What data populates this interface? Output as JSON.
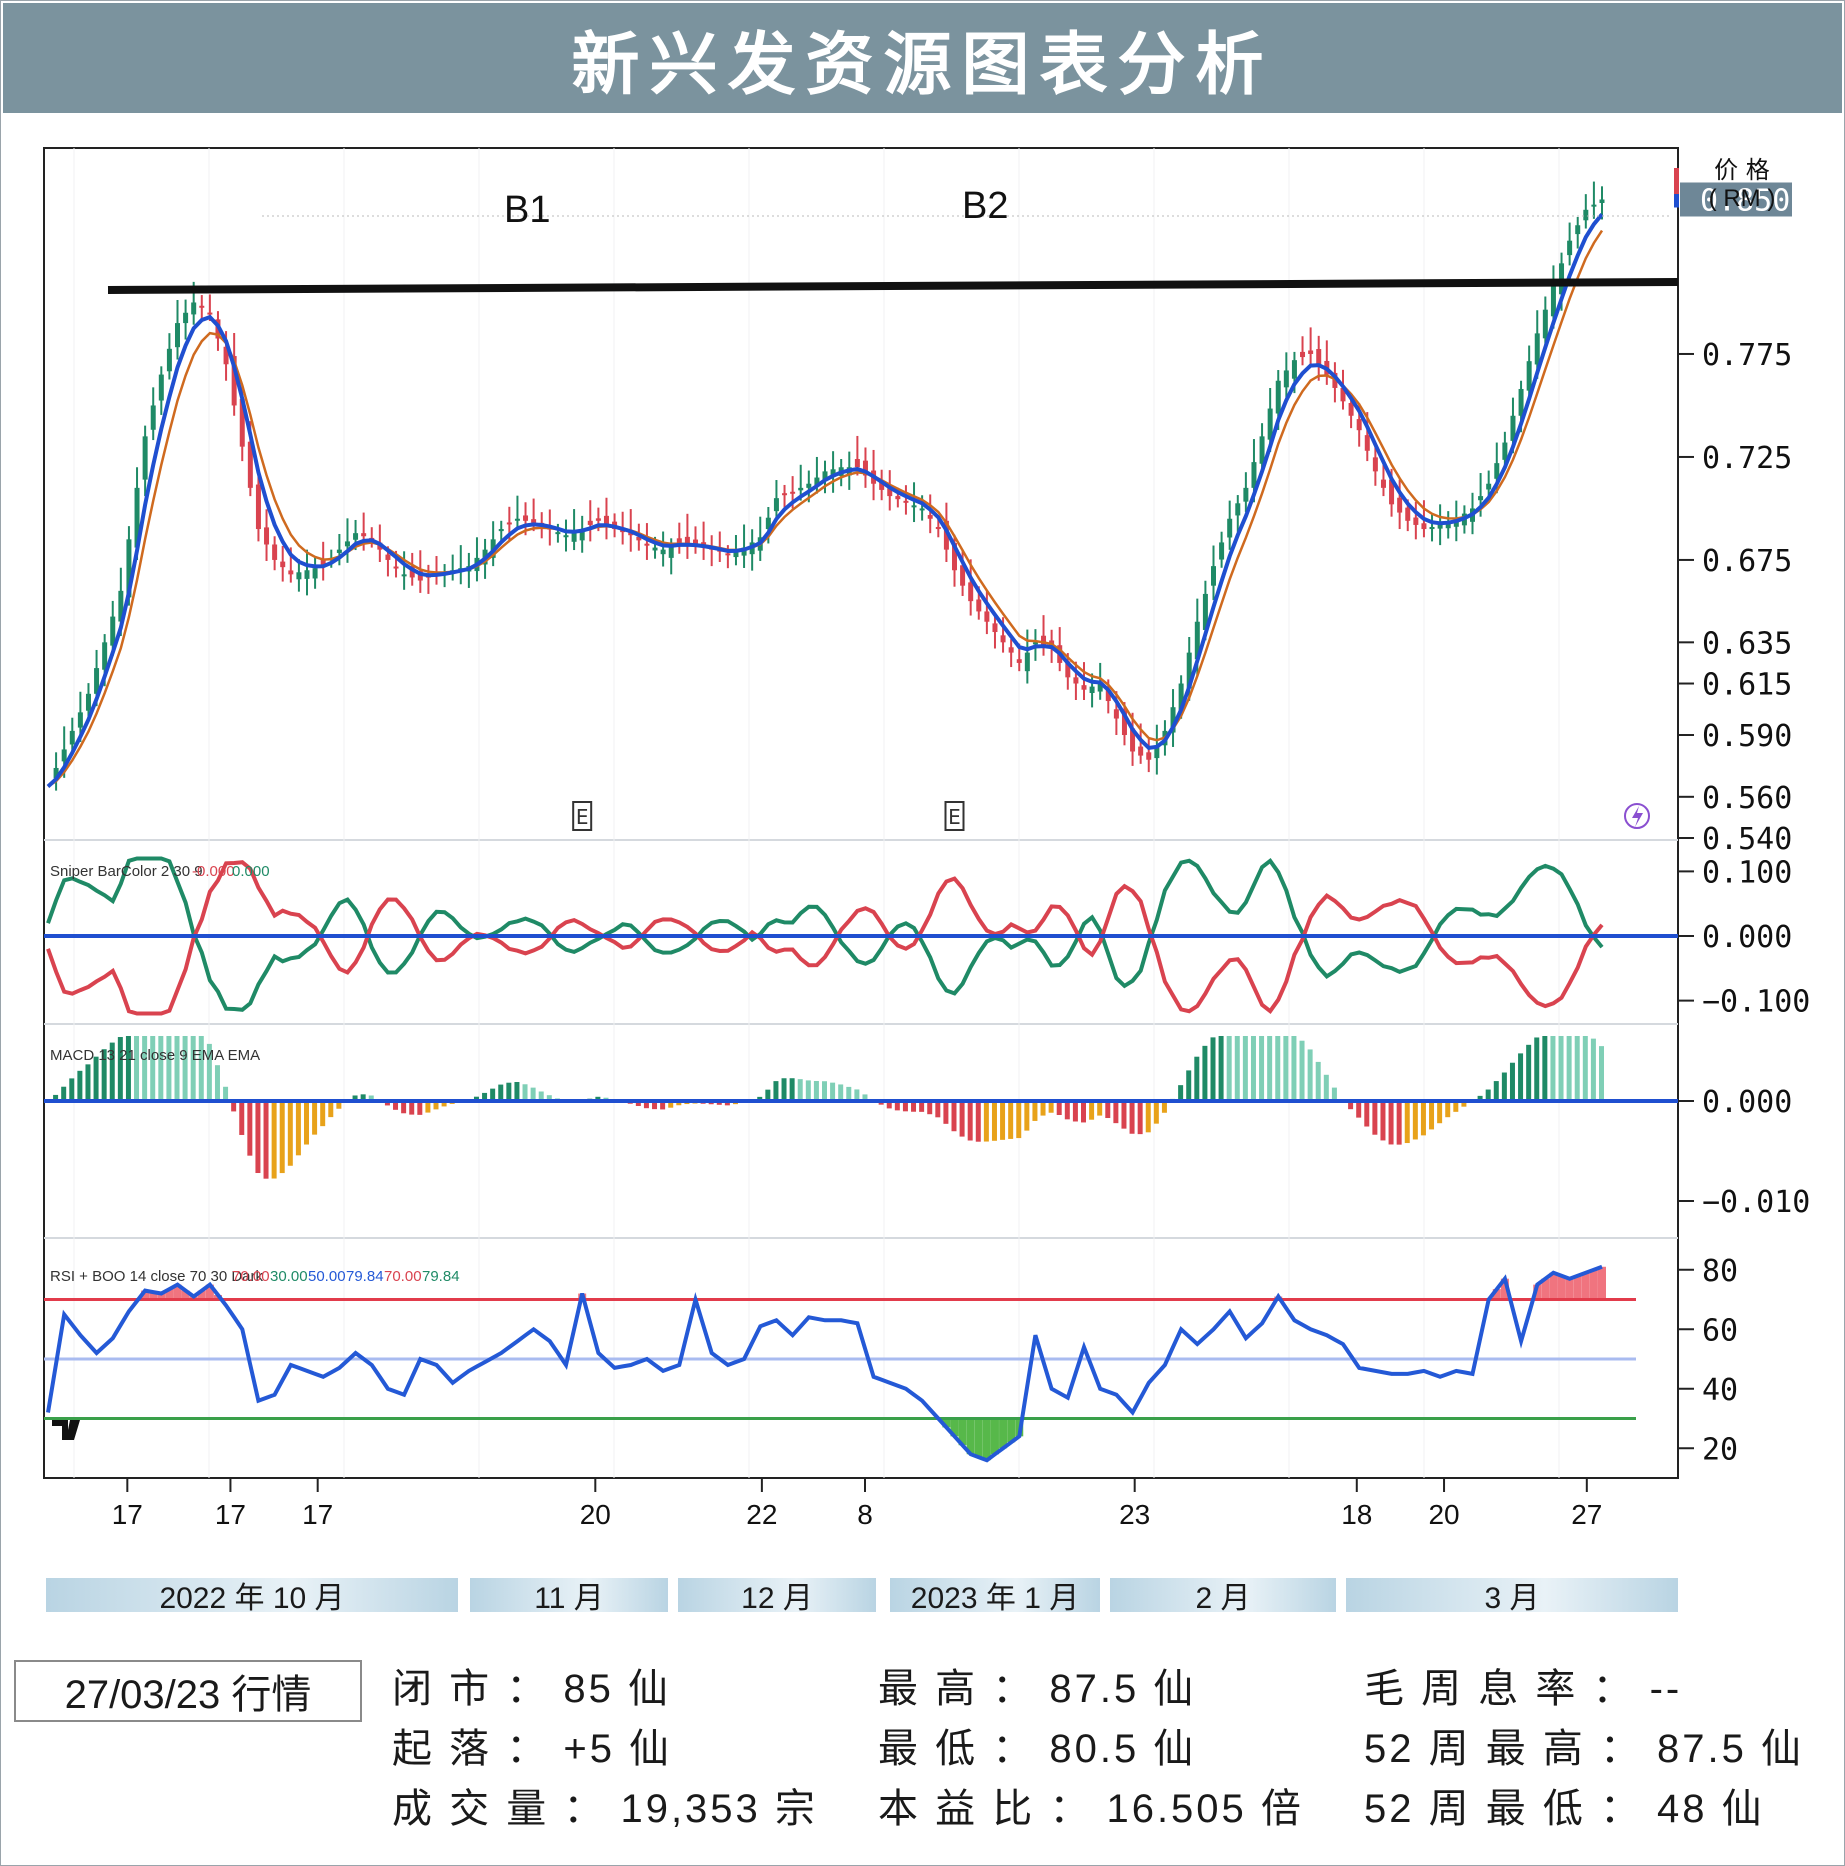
{
  "title": "新兴发资源图表分析",
  "chart_data": {
    "type": "candlestick",
    "y_axis_label": "价 格\n( RM )",
    "price_ticks": [
      "0.775",
      "0.725",
      "0.675",
      "0.635",
      "0.615",
      "0.590",
      "0.560",
      "0.540"
    ],
    "price_ylim": [
      0.54,
      0.875
    ],
    "last_price": "0.850",
    "resistance_level": 0.808,
    "annotations": [
      "B1",
      "B2"
    ],
    "earnings_markers": [
      "E",
      "E"
    ],
    "x_tick_labels": [
      "17",
      "17",
      "17",
      "20",
      "22",
      "8",
      "23",
      "18",
      "20",
      "27"
    ],
    "month_labels": [
      "2022 年 10 月",
      "11 月",
      "12 月",
      "2023 年 1 月",
      "2 月",
      "3 月"
    ],
    "close_path": [
      [
        0,
        0.565
      ],
      [
        5,
        0.61
      ],
      [
        9,
        0.66
      ],
      [
        12,
        0.735
      ],
      [
        14,
        0.765
      ],
      [
        16,
        0.79
      ],
      [
        18,
        0.8
      ],
      [
        20,
        0.795
      ],
      [
        22,
        0.77
      ],
      [
        24,
        0.73
      ],
      [
        26,
        0.69
      ],
      [
        28,
        0.675
      ],
      [
        30,
        0.668
      ],
      [
        32,
        0.67
      ],
      [
        34,
        0.672
      ],
      [
        36,
        0.68
      ],
      [
        38,
        0.688
      ],
      [
        40,
        0.685
      ],
      [
        42,
        0.675
      ],
      [
        44,
        0.668
      ],
      [
        46,
        0.665
      ],
      [
        48,
        0.668
      ],
      [
        50,
        0.67
      ],
      [
        52,
        0.672
      ],
      [
        54,
        0.68
      ],
      [
        56,
        0.69
      ],
      [
        58,
        0.695
      ],
      [
        60,
        0.693
      ],
      [
        62,
        0.69
      ],
      [
        64,
        0.687
      ],
      [
        66,
        0.69
      ],
      [
        68,
        0.694
      ],
      [
        70,
        0.69
      ],
      [
        72,
        0.687
      ],
      [
        74,
        0.682
      ],
      [
        76,
        0.68
      ],
      [
        78,
        0.683
      ],
      [
        80,
        0.682
      ],
      [
        82,
        0.68
      ],
      [
        84,
        0.678
      ],
      [
        86,
        0.681
      ],
      [
        88,
        0.686
      ],
      [
        90,
        0.705
      ],
      [
        92,
        0.708
      ],
      [
        94,
        0.712
      ],
      [
        96,
        0.718
      ],
      [
        98,
        0.72
      ],
      [
        100,
        0.72
      ],
      [
        102,
        0.712
      ],
      [
        104,
        0.706
      ],
      [
        106,
        0.703
      ],
      [
        108,
        0.7
      ],
      [
        110,
        0.69
      ],
      [
        112,
        0.67
      ],
      [
        114,
        0.655
      ],
      [
        116,
        0.645
      ],
      [
        118,
        0.635
      ],
      [
        120,
        0.625
      ],
      [
        122,
        0.635
      ],
      [
        124,
        0.632
      ],
      [
        126,
        0.618
      ],
      [
        128,
        0.612
      ],
      [
        130,
        0.615
      ],
      [
        132,
        0.598
      ],
      [
        134,
        0.582
      ],
      [
        136,
        0.578
      ],
      [
        138,
        0.592
      ],
      [
        140,
        0.615
      ],
      [
        142,
        0.645
      ],
      [
        144,
        0.672
      ],
      [
        146,
        0.695
      ],
      [
        148,
        0.71
      ],
      [
        150,
        0.735
      ],
      [
        152,
        0.762
      ],
      [
        154,
        0.772
      ],
      [
        156,
        0.775
      ],
      [
        158,
        0.765
      ],
      [
        160,
        0.752
      ],
      [
        162,
        0.738
      ],
      [
        164,
        0.718
      ],
      [
        166,
        0.702
      ],
      [
        168,
        0.694
      ],
      [
        170,
        0.69
      ],
      [
        172,
        0.692
      ],
      [
        174,
        0.695
      ],
      [
        176,
        0.7
      ],
      [
        178,
        0.712
      ],
      [
        180,
        0.732
      ],
      [
        182,
        0.758
      ],
      [
        184,
        0.785
      ],
      [
        186,
        0.808
      ],
      [
        188,
        0.83
      ],
      [
        190,
        0.845
      ],
      [
        192,
        0.85
      ]
    ],
    "indicator_sniper": {
      "label": "Sniper BarColor 2 30 9",
      "values": [
        "-0.000",
        "0.000"
      ],
      "ticks": [
        "0.100",
        "0.000",
        "−0.100"
      ],
      "ylim": [
        -0.13,
        0.13
      ]
    },
    "indicator_macd": {
      "label": "MACD 13 21 close 9 EMA EMA",
      "ticks": [
        "0.000",
        "−0.010"
      ],
      "ylim": [
        -0.0135,
        0.0075
      ]
    },
    "indicator_rsi": {
      "label": "RSI + BOO 14 close 70 30 Dark",
      "values": [
        "70.00",
        "30.00",
        "50.00",
        "79.84",
        "70.00",
        "79.84"
      ],
      "ticks": [
        "80",
        "60",
        "40",
        "20"
      ],
      "ylim": [
        10,
        90
      ],
      "upper_band": 70,
      "middle_band": 50,
      "lower_band": 30,
      "path": [
        [
          0,
          32
        ],
        [
          2,
          65
        ],
        [
          4,
          58
        ],
        [
          6,
          52
        ],
        [
          8,
          57
        ],
        [
          10,
          66
        ],
        [
          12,
          73
        ],
        [
          14,
          72
        ],
        [
          16,
          75
        ],
        [
          18,
          71
        ],
        [
          20,
          75
        ],
        [
          22,
          68
        ],
        [
          24,
          60
        ],
        [
          26,
          36
        ],
        [
          28,
          38
        ],
        [
          30,
          48
        ],
        [
          32,
          46
        ],
        [
          34,
          44
        ],
        [
          36,
          47
        ],
        [
          38,
          52
        ],
        [
          40,
          48
        ],
        [
          42,
          40
        ],
        [
          44,
          38
        ],
        [
          46,
          50
        ],
        [
          48,
          48
        ],
        [
          50,
          42
        ],
        [
          52,
          46
        ],
        [
          54,
          49
        ],
        [
          56,
          52
        ],
        [
          58,
          56
        ],
        [
          60,
          60
        ],
        [
          62,
          56
        ],
        [
          64,
          48
        ],
        [
          66,
          72
        ],
        [
          68,
          52
        ],
        [
          70,
          47
        ],
        [
          72,
          48
        ],
        [
          74,
          50
        ],
        [
          76,
          46
        ],
        [
          78,
          48
        ],
        [
          80,
          70
        ],
        [
          82,
          52
        ],
        [
          84,
          48
        ],
        [
          86,
          50
        ],
        [
          88,
          61
        ],
        [
          90,
          63
        ],
        [
          92,
          58
        ],
        [
          94,
          64
        ],
        [
          96,
          63
        ],
        [
          98,
          63
        ],
        [
          100,
          62
        ],
        [
          102,
          44
        ],
        [
          104,
          42
        ],
        [
          106,
          40
        ],
        [
          108,
          36
        ],
        [
          110,
          30
        ],
        [
          112,
          24
        ],
        [
          114,
          18
        ],
        [
          116,
          16
        ],
        [
          118,
          20
        ],
        [
          120,
          24
        ],
        [
          122,
          58
        ],
        [
          124,
          40
        ],
        [
          126,
          37
        ],
        [
          128,
          54
        ],
        [
          130,
          40
        ],
        [
          132,
          38
        ],
        [
          134,
          32
        ],
        [
          136,
          42
        ],
        [
          138,
          48
        ],
        [
          140,
          60
        ],
        [
          142,
          55
        ],
        [
          144,
          60
        ],
        [
          146,
          66
        ],
        [
          148,
          57
        ],
        [
          150,
          62
        ],
        [
          152,
          71
        ],
        [
          154,
          63
        ],
        [
          156,
          60
        ],
        [
          158,
          58
        ],
        [
          160,
          55
        ],
        [
          162,
          47
        ],
        [
          164,
          46
        ],
        [
          166,
          45
        ],
        [
          168,
          45
        ],
        [
          170,
          46
        ],
        [
          172,
          44
        ],
        [
          174,
          46
        ],
        [
          176,
          45
        ],
        [
          178,
          70
        ],
        [
          180,
          77
        ],
        [
          182,
          56
        ],
        [
          184,
          75
        ],
        [
          186,
          79
        ],
        [
          188,
          77
        ],
        [
          190,
          79
        ],
        [
          192,
          81
        ]
      ]
    }
  },
  "quote": {
    "date": "27/03/23 行情",
    "close": "闭 市 ： 85 仙",
    "change": "起 落 ： +5 仙",
    "volume": "成 交 量 ： 19,353 宗",
    "high": "最 高 ： 87.5 仙",
    "low": "最 低 ： 80.5 仙",
    "pe": "本 益 比 ： 16.505 倍",
    "yield": "毛 周 息 率 ： --",
    "high52": "52 周 最 高 ： 87.5 仙",
    "low52": "52 周 最 低 ： 48 仙"
  },
  "colors": {
    "up": "#1f8a66",
    "down": "#d9434f",
    "ma_fast": "#1f4fd0",
    "ma_slow": "#cf6a1f",
    "gold": "#e8a21a",
    "rsi_line": "#2459d6",
    "rsi_upper": "#e23b4b",
    "rsi_mid": "#a9bbf0",
    "rsi_lower": "#3aa04a",
    "title_bg": "#7b939e"
  }
}
